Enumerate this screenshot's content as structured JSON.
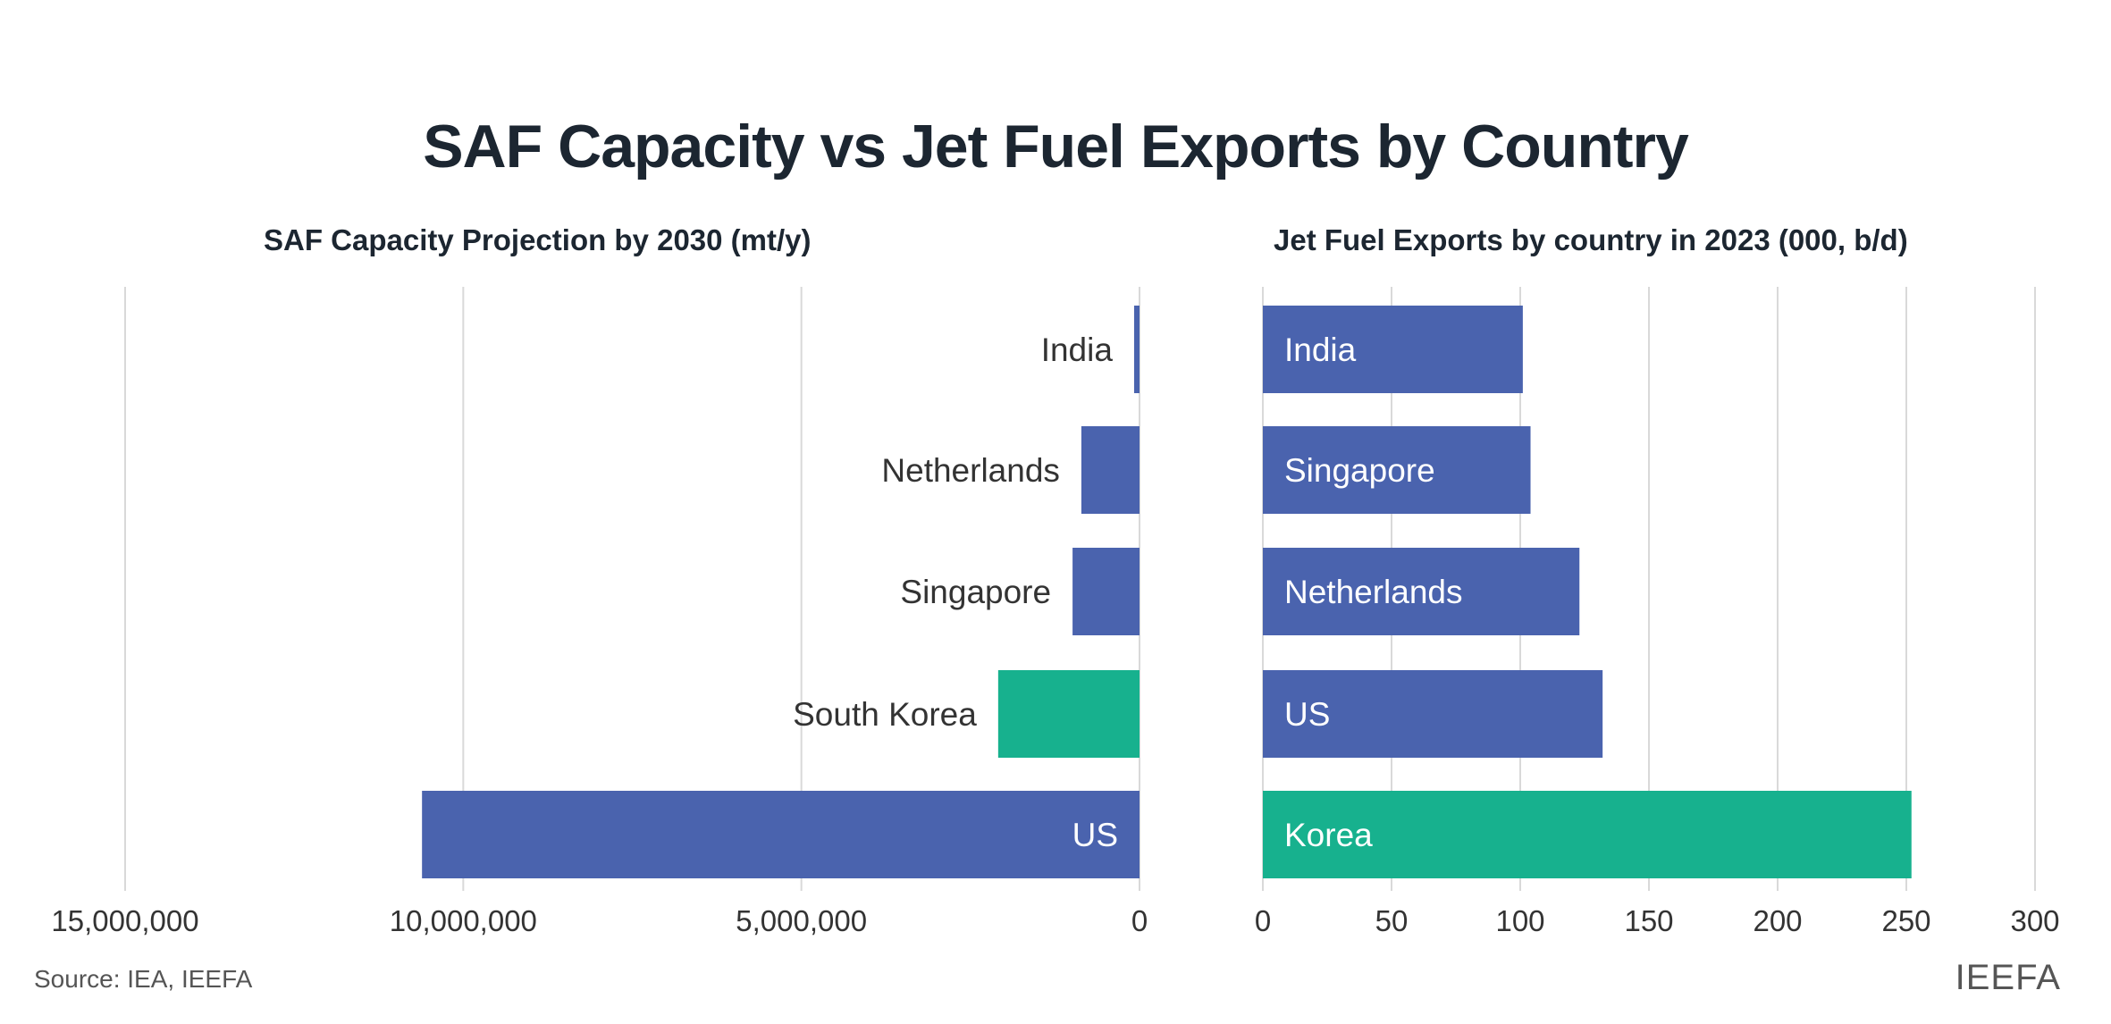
{
  "title": "SAF Capacity vs Jet Fuel Exports by Country",
  "source": "Source: IEA, IEEFA",
  "brand": "IEEFA",
  "colors": {
    "default": "#4a63ae",
    "highlight": "#17b18e",
    "grid": "#d9d9d9"
  },
  "chart_data": [
    {
      "type": "bar",
      "orientation": "horizontal-reversed",
      "title": "SAF Capacity Projection by 2030 (mt/y)",
      "categories": [
        "India",
        "Netherlands",
        "Singapore",
        "South Korea",
        "US"
      ],
      "values": [
        80000,
        860000,
        990000,
        2090000,
        10610000
      ],
      "highlight": [
        "South Korea"
      ],
      "xlim": [
        0,
        15000000
      ],
      "ticks": [
        "0",
        "5,000,000",
        "10,000,000",
        "15,000,000"
      ],
      "tick_values": [
        0,
        5000000,
        10000000,
        15000000
      ],
      "grid": true
    },
    {
      "type": "bar",
      "orientation": "horizontal",
      "title": "Jet Fuel Exports by country in 2023 (000, b/d)",
      "categories": [
        "India",
        "Singapore",
        "Netherlands",
        "US",
        "Korea"
      ],
      "values": [
        101,
        104,
        123,
        132,
        252
      ],
      "highlight": [
        "Korea"
      ],
      "xlim": [
        0,
        300
      ],
      "ticks": [
        "0",
        "50",
        "100",
        "150",
        "200",
        "250",
        "300"
      ],
      "tick_values": [
        0,
        50,
        100,
        150,
        200,
        250,
        300
      ],
      "grid": true
    }
  ]
}
